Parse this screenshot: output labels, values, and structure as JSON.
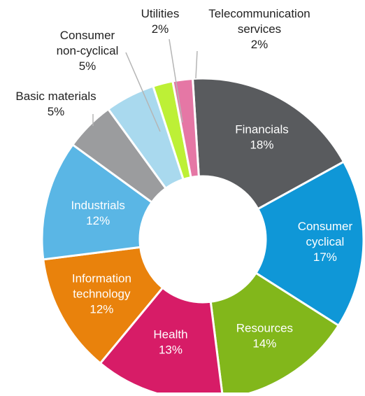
{
  "chart_data": {
    "type": "pie",
    "donut": true,
    "title": "",
    "slices": [
      {
        "label": "Financials",
        "label_lines": [
          "Financials"
        ],
        "value_text": "18%",
        "value": 18,
        "color": "#595b5e",
        "label_inside": true,
        "text_color": "#ffffff"
      },
      {
        "label": "Consumer cyclical",
        "label_lines": [
          "Consumer",
          "cyclical"
        ],
        "value_text": "17%",
        "value": 17,
        "color": "#0f97d7",
        "label_inside": true,
        "text_color": "#ffffff"
      },
      {
        "label": "Resources",
        "label_lines": [
          "Resources"
        ],
        "value_text": "14%",
        "value": 14,
        "color": "#82b71b",
        "label_inside": true,
        "text_color": "#ffffff"
      },
      {
        "label": "Health",
        "label_lines": [
          "Health"
        ],
        "value_text": "13%",
        "value": 13,
        "color": "#d71c67",
        "label_inside": true,
        "text_color": "#ffffff"
      },
      {
        "label": "Information technology",
        "label_lines": [
          "Information",
          "technology"
        ],
        "value_text": "12%",
        "value": 12,
        "color": "#e9820c",
        "label_inside": true,
        "text_color": "#ffffff"
      },
      {
        "label": "Industrials",
        "label_lines": [
          "Industrials"
        ],
        "value_text": "12%",
        "value": 12,
        "color": "#5ab6e5",
        "label_inside": true,
        "text_color": "#ffffff"
      },
      {
        "label": "Basic materials",
        "label_lines": [
          "Basic materials"
        ],
        "value_text": "5%",
        "value": 5,
        "color": "#9b9c9e",
        "label_inside": false,
        "text_color": "#222222"
      },
      {
        "label": "Consumer non-cyclical",
        "label_lines": [
          "Consumer",
          "non-cyclical"
        ],
        "value_text": "5%",
        "value": 5,
        "color": "#a9d9ee",
        "label_inside": false,
        "text_color": "#222222"
      },
      {
        "label": "Utilities",
        "label_lines": [
          "Utilities"
        ],
        "value_text": "2%",
        "value": 2,
        "color": "#bdf036",
        "label_inside": false,
        "text_color": "#222222"
      },
      {
        "label": "Telecommunication services",
        "label_lines": [
          "Telecommunication",
          "services"
        ],
        "value_text": "2%",
        "value": 2,
        "color": "#e577a5",
        "label_inside": false,
        "text_color": "#222222"
      }
    ]
  }
}
